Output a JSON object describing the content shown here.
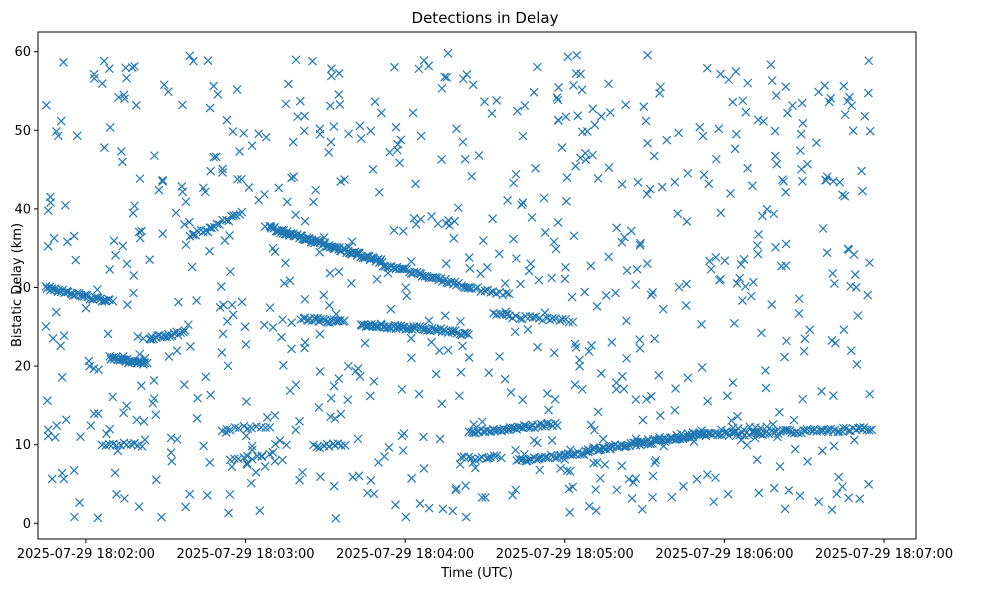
{
  "chart_data": {
    "type": "scatter",
    "title": "Detections in Delay",
    "xlabel": "Time (UTC)",
    "ylabel": "Bistatic Delay (km)",
    "x_unit": "minutes after 2025-07-29 18:00:00",
    "xlim": [
      1.7,
      7.2
    ],
    "ylim": [
      -2,
      62.5
    ],
    "x_ticks": [
      {
        "value": 2,
        "label": "2025-07-29 18:02:00"
      },
      {
        "value": 3,
        "label": "2025-07-29 18:03:00"
      },
      {
        "value": 4,
        "label": "2025-07-29 18:04:00"
      },
      {
        "value": 5,
        "label": "2025-07-29 18:05:00"
      },
      {
        "value": 6,
        "label": "2025-07-29 18:06:00"
      },
      {
        "value": 7,
        "label": "2025-07-29 18:07:00"
      }
    ],
    "y_ticks": [
      {
        "value": 0,
        "label": "0"
      },
      {
        "value": 10,
        "label": "10"
      },
      {
        "value": 20,
        "label": "20"
      },
      {
        "value": 30,
        "label": "30"
      },
      {
        "value": 40,
        "label": "40"
      },
      {
        "value": 50,
        "label": "50"
      },
      {
        "value": 60,
        "label": "60"
      }
    ],
    "marker": "x",
    "color": "#1f77b4",
    "x_extent": [
      1.75,
      6.92
    ],
    "tracks": [
      {
        "x_start": 1.75,
        "x_end": 2.15,
        "y_start": 30.0,
        "y_end": 28.2,
        "n": 40
      },
      {
        "x_start": 2.15,
        "x_end": 2.38,
        "y_start": 21.0,
        "y_end": 20.3,
        "n": 30
      },
      {
        "x_start": 2.4,
        "x_end": 2.62,
        "y_start": 23.6,
        "y_end": 24.3,
        "n": 18
      },
      {
        "x_start": 2.65,
        "x_end": 2.98,
        "y_start": 36.5,
        "y_end": 39.5,
        "n": 20
      },
      {
        "x_start": 3.15,
        "x_end": 3.85,
        "y_start": 37.6,
        "y_end": 33.3,
        "n": 95
      },
      {
        "x_start": 3.85,
        "x_end": 4.4,
        "y_start": 33.0,
        "y_end": 30.0,
        "n": 45
      },
      {
        "x_start": 4.4,
        "x_end": 4.65,
        "y_start": 30.0,
        "y_end": 29.0,
        "n": 14
      },
      {
        "x_start": 3.35,
        "x_end": 3.62,
        "y_start": 26.1,
        "y_end": 25.6,
        "n": 25
      },
      {
        "x_start": 3.72,
        "x_end": 4.05,
        "y_start": 25.3,
        "y_end": 24.8,
        "n": 35
      },
      {
        "x_start": 4.05,
        "x_end": 4.4,
        "y_start": 24.9,
        "y_end": 24.1,
        "n": 30
      },
      {
        "x_start": 4.55,
        "x_end": 5.05,
        "y_start": 26.5,
        "y_end": 25.7,
        "n": 25
      },
      {
        "x_start": 4.4,
        "x_end": 4.95,
        "y_start": 11.6,
        "y_end": 12.6,
        "n": 45
      },
      {
        "x_start": 4.7,
        "x_end": 5.15,
        "y_start": 8.0,
        "y_end": 9.0,
        "n": 35
      },
      {
        "x_start": 5.15,
        "x_end": 5.8,
        "y_start": 9.3,
        "y_end": 11.0,
        "n": 60
      },
      {
        "x_start": 5.8,
        "x_end": 6.92,
        "y_start": 11.2,
        "y_end": 12.0,
        "n": 80
      },
      {
        "x_start": 5.45,
        "x_end": 6.3,
        "y_start": 10.5,
        "y_end": 12.5,
        "n": 25
      },
      {
        "x_start": 2.1,
        "x_end": 2.35,
        "y_start": 10.0,
        "y_end": 10.0,
        "n": 12
      },
      {
        "x_start": 2.9,
        "x_end": 3.1,
        "y_start": 8.3,
        "y_end": 8.3,
        "n": 8
      },
      {
        "x_start": 3.45,
        "x_end": 3.62,
        "y_start": 9.8,
        "y_end": 10.1,
        "n": 10
      },
      {
        "x_start": 2.85,
        "x_end": 3.15,
        "y_start": 12.0,
        "y_end": 12.3,
        "n": 12
      },
      {
        "x_start": 4.35,
        "x_end": 4.6,
        "y_start": 8.2,
        "y_end": 8.5,
        "n": 12
      }
    ],
    "noise": {
      "x_range": [
        1.75,
        6.92
      ],
      "y_range": [
        0.5,
        59.8
      ],
      "n": 760,
      "seed": 20250729
    }
  }
}
